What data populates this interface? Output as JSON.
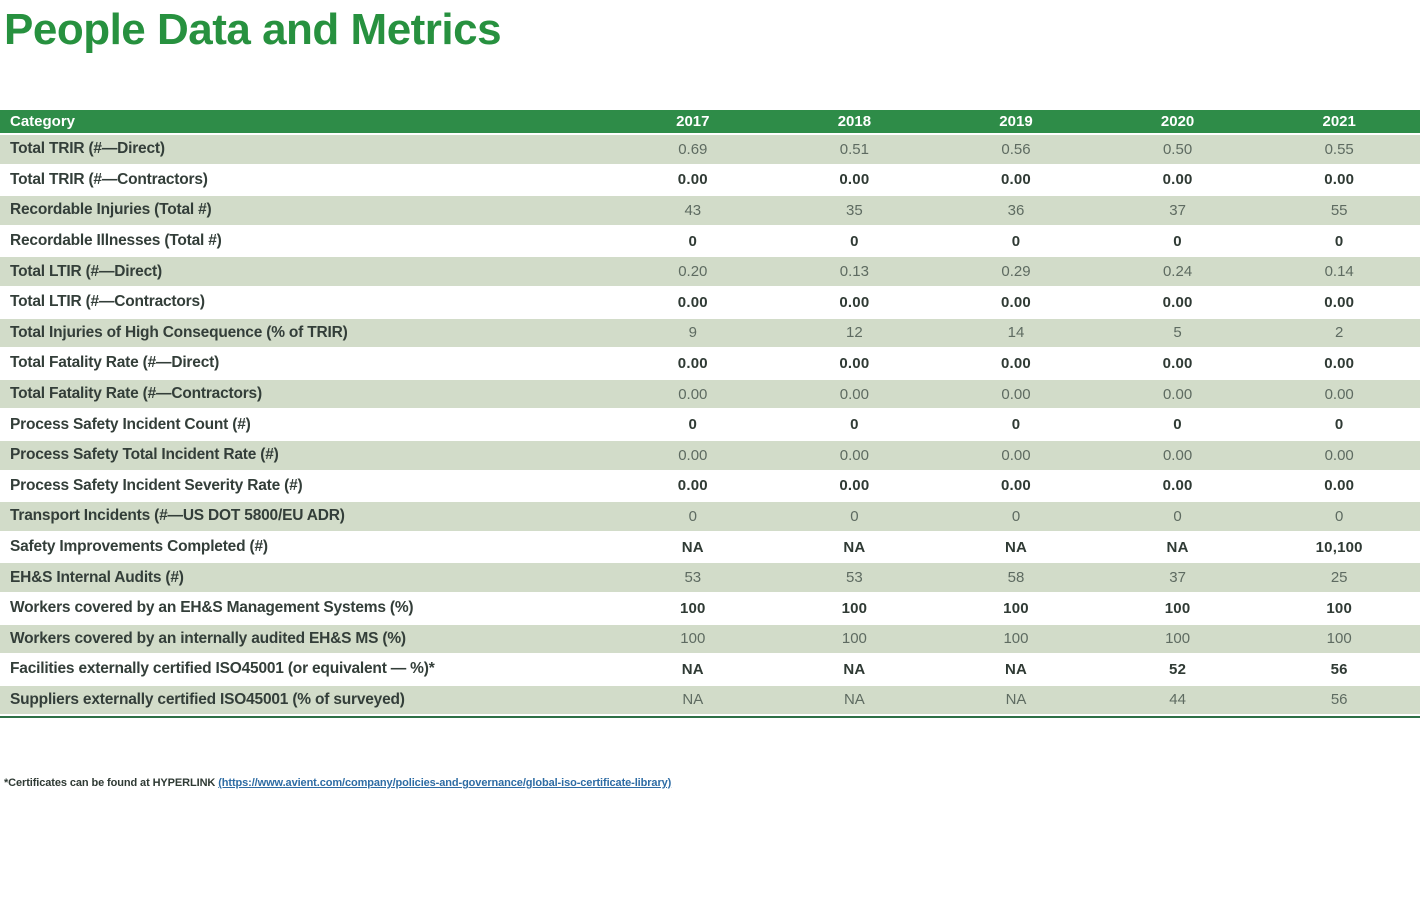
{
  "page": {
    "title": "People Data and Metrics"
  },
  "colors": {
    "brand_green": "#2e8c48",
    "title_green": "#27913f",
    "row_band_green": "#d2dcc9",
    "label_dark": "#333e39",
    "value_gray": "#5e6b61",
    "value_dark": "#2f3a34",
    "table_bottom_rule": "#2e7046",
    "link_blue": "#2e6ca4"
  },
  "table": {
    "header": {
      "category": "Category",
      "years": [
        "2017",
        "2018",
        "2019",
        "2020",
        "2021"
      ]
    },
    "rows": [
      {
        "label": "Total TRIR (#—Direct)",
        "values": [
          "0.69",
          "0.51",
          "0.56",
          "0.50",
          "0.55"
        ]
      },
      {
        "label": "Total TRIR (#—Contractors)",
        "values": [
          "0.00",
          "0.00",
          "0.00",
          "0.00",
          "0.00"
        ]
      },
      {
        "label": "Recordable Injuries (Total #)",
        "values": [
          "43",
          "35",
          "36",
          "37",
          "55"
        ]
      },
      {
        "label": "Recordable Illnesses (Total #)",
        "values": [
          "0",
          "0",
          "0",
          "0",
          "0"
        ]
      },
      {
        "label": "Total LTIR (#—Direct)",
        "values": [
          "0.20",
          "0.13",
          "0.29",
          "0.24",
          "0.14"
        ]
      },
      {
        "label": "Total LTIR (#—Contractors)",
        "values": [
          "0.00",
          "0.00",
          "0.00",
          "0.00",
          "0.00"
        ]
      },
      {
        "label": "Total Injuries of High Consequence (% of TRIR)",
        "values": [
          "9",
          "12",
          "14",
          "5",
          "2"
        ]
      },
      {
        "label": "Total Fatality Rate (#—Direct)",
        "values": [
          "0.00",
          "0.00",
          "0.00",
          "0.00",
          "0.00"
        ]
      },
      {
        "label": "Total Fatality Rate (#—Contractors)",
        "values": [
          "0.00",
          "0.00",
          "0.00",
          "0.00",
          "0.00"
        ]
      },
      {
        "label": "Process Safety Incident Count (#)",
        "values": [
          "0",
          "0",
          "0",
          "0",
          "0"
        ]
      },
      {
        "label": "Process Safety Total Incident Rate (#)",
        "values": [
          "0.00",
          "0.00",
          "0.00",
          "0.00",
          "0.00"
        ]
      },
      {
        "label": "Process Safety Incident Severity Rate (#)",
        "values": [
          "0.00",
          "0.00",
          "0.00",
          "0.00",
          "0.00"
        ]
      },
      {
        "label": "Transport Incidents (#—US DOT 5800/EU ADR)",
        "values": [
          "0",
          "0",
          "0",
          "0",
          "0"
        ]
      },
      {
        "label": "Safety Improvements Completed (#)",
        "values": [
          "NA",
          "NA",
          "NA",
          "NA",
          "10,100"
        ]
      },
      {
        "label": "EH&S Internal Audits (#)",
        "values": [
          "53",
          "53",
          "58",
          "37",
          "25"
        ]
      },
      {
        "label": "Workers covered by an EH&S Management Systems (%)",
        "values": [
          "100",
          "100",
          "100",
          "100",
          "100"
        ]
      },
      {
        "label": "Workers covered by an internally audited EH&S MS (%)",
        "values": [
          "100",
          "100",
          "100",
          "100",
          "100"
        ]
      },
      {
        "label": "Facilities externally certified ISO45001 (or equivalent — %)*",
        "values": [
          "NA",
          "NA",
          "NA",
          "52",
          "56"
        ]
      },
      {
        "label": "Suppliers externally certified ISO45001 (% of surveyed)",
        "values": [
          "NA",
          "NA",
          "NA",
          "44",
          "56"
        ]
      }
    ]
  },
  "footnote": {
    "prefix": "*Certificates can be found at HYPERLINK ",
    "link": "(https://www.avient.com/company/policies-and-governance/global-iso-certificate-library)"
  }
}
